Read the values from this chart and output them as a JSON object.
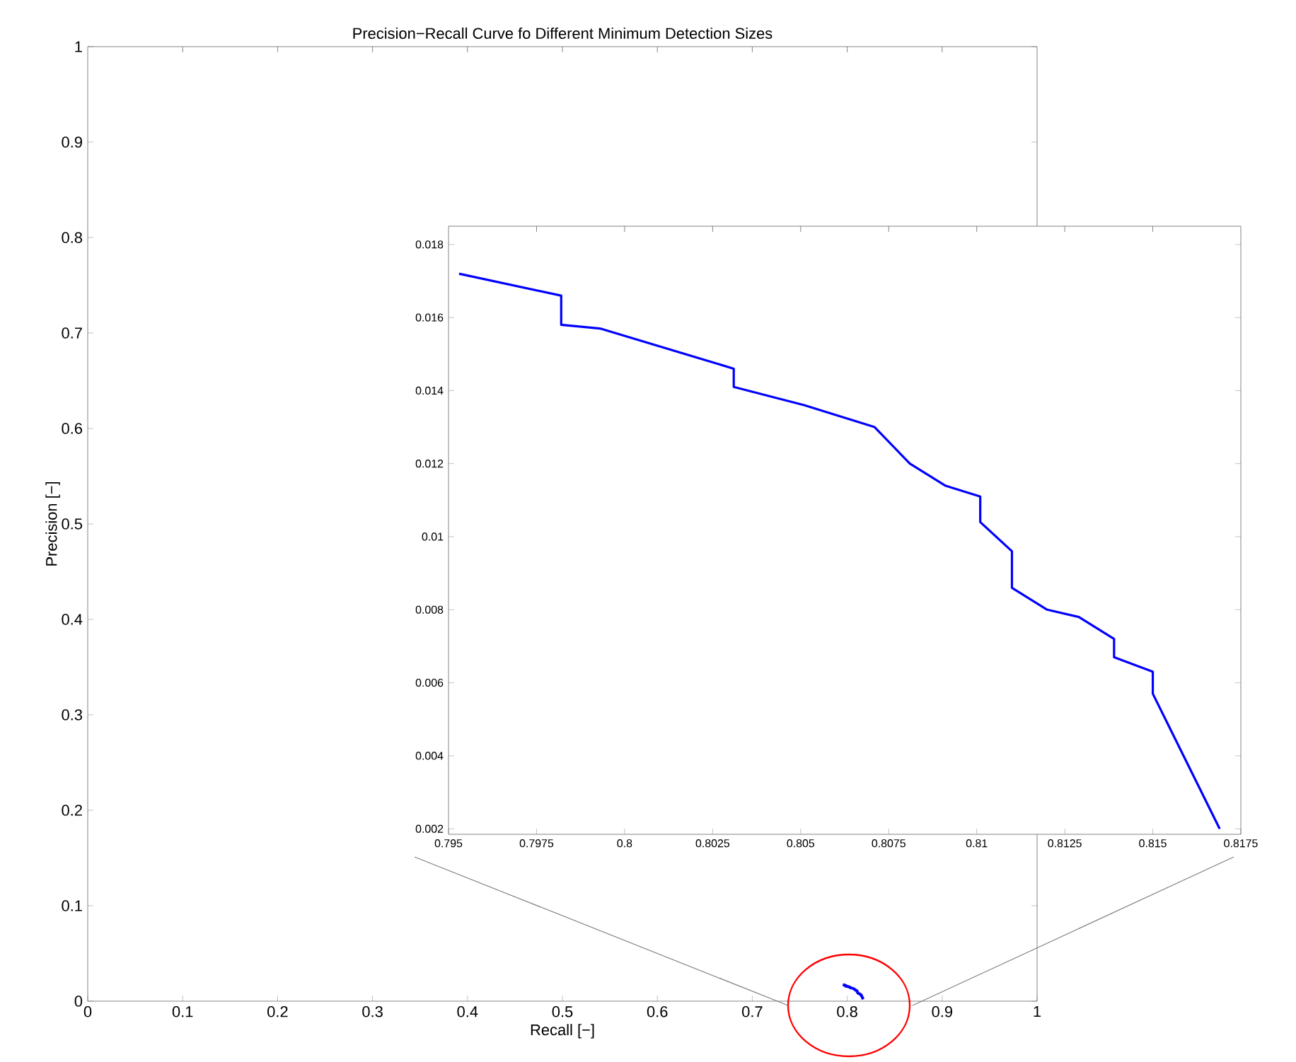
{
  "chart_data": [
    {
      "type": "line",
      "title": "Precision−Recall Curve fo Different Minimum Detection Sizes",
      "xlabel": "Recall [−]",
      "ylabel": "Precision [−]",
      "xlim": [
        0,
        1
      ],
      "ylim": [
        0,
        1
      ],
      "xticks": [
        0,
        0.1,
        0.2,
        0.3,
        0.4,
        0.5,
        0.6,
        0.7,
        0.8,
        0.9,
        1
      ],
      "yticks": [
        0,
        0.1,
        0.2,
        0.3,
        0.4,
        0.5,
        0.6,
        0.7,
        0.8,
        0.9,
        1
      ],
      "series": [
        {
          "color": "#0000ff",
          "x": [
            0.7953,
            0.7982,
            0.7982,
            0.7993,
            0.8031,
            0.8031,
            0.8051,
            0.8071,
            0.8081,
            0.8091,
            0.8101,
            0.8101,
            0.811,
            0.811,
            0.812,
            0.8129,
            0.8139,
            0.8139,
            0.815,
            0.815,
            0.8169
          ],
          "values": [
            0.0172,
            0.0166,
            0.0158,
            0.0157,
            0.0146,
            0.0141,
            0.0136,
            0.013,
            0.012,
            0.0114,
            0.0111,
            0.0104,
            0.0096,
            0.0086,
            0.008,
            0.0078,
            0.0072,
            0.0067,
            0.0063,
            0.0057,
            0.002
          ]
        }
      ]
    },
    {
      "type": "line",
      "xlim": [
        0.795,
        0.8175
      ],
      "ylim": [
        0.00185,
        0.0185
      ],
      "xticks": [
        0.795,
        0.7975,
        0.8,
        0.8025,
        0.805,
        0.8075,
        0.81,
        0.8125,
        0.815,
        0.8175
      ],
      "yticks": [
        0.002,
        0.004,
        0.006,
        0.008,
        0.01,
        0.012,
        0.014,
        0.016,
        0.018
      ],
      "series": [
        {
          "color": "#0000ff",
          "x": [
            0.7953,
            0.7982,
            0.7982,
            0.7993,
            0.8031,
            0.8031,
            0.8051,
            0.8071,
            0.8081,
            0.8091,
            0.8101,
            0.8101,
            0.811,
            0.811,
            0.812,
            0.8129,
            0.8139,
            0.8139,
            0.815,
            0.815,
            0.8169
          ],
          "values": [
            0.0172,
            0.0166,
            0.0158,
            0.0157,
            0.0146,
            0.0141,
            0.0136,
            0.013,
            0.012,
            0.0114,
            0.0111,
            0.0104,
            0.0096,
            0.0086,
            0.008,
            0.0078,
            0.0072,
            0.0067,
            0.0063,
            0.0057,
            0.002
          ]
        }
      ]
    }
  ]
}
